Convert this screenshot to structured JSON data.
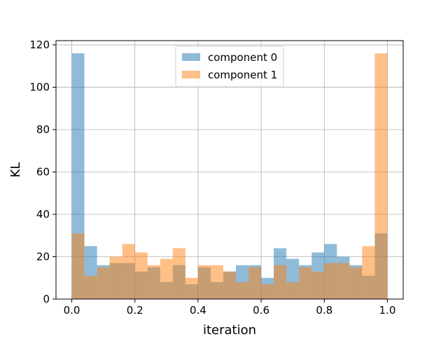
{
  "chart_data": {
    "type": "bar",
    "histogram": true,
    "xlabel": "iteration",
    "ylabel": "KL",
    "xlim": [
      -0.05,
      1.05
    ],
    "ylim": [
      0,
      122
    ],
    "xticks": [
      0.0,
      0.2,
      0.4,
      0.6,
      0.8,
      1.0
    ],
    "xtick_labels": [
      "0.0",
      "0.2",
      "0.4",
      "0.6",
      "0.8",
      "1.0"
    ],
    "yticks": [
      0,
      20,
      40,
      60,
      80,
      100,
      120
    ],
    "ytick_labels": [
      "0",
      "20",
      "40",
      "60",
      "80",
      "100",
      "120"
    ],
    "grid": true,
    "legend_position": "upper center",
    "bin_edges": [
      0.0,
      0.04,
      0.08,
      0.12,
      0.16,
      0.2,
      0.24,
      0.28,
      0.32,
      0.36,
      0.4,
      0.44,
      0.48,
      0.52,
      0.56,
      0.6,
      0.64,
      0.68,
      0.72,
      0.76,
      0.8,
      0.84,
      0.88,
      0.92,
      0.96,
      1.0
    ],
    "series": [
      {
        "name": "component 0",
        "color": "#1f77b4",
        "alpha": 0.5,
        "values": [
          116,
          25,
          16,
          17,
          17,
          13,
          15,
          8,
          16,
          7,
          15,
          8,
          13,
          16,
          16,
          10,
          24,
          19,
          16,
          22,
          26,
          20,
          16,
          11,
          31
        ]
      },
      {
        "name": "component 1",
        "color": "#ff7f0e",
        "alpha": 0.5,
        "values": [
          31,
          11,
          15,
          20,
          26,
          22,
          16,
          19,
          24,
          10,
          16,
          16,
          13,
          8,
          15,
          7,
          16,
          8,
          15,
          13,
          17,
          17,
          15,
          25,
          116
        ]
      }
    ]
  }
}
